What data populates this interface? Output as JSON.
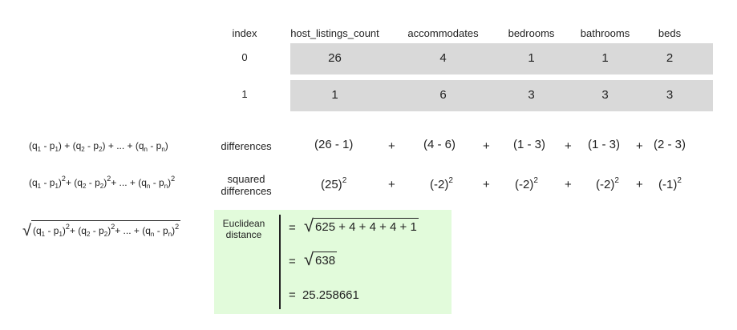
{
  "table": {
    "headers": [
      "index",
      "host_listings_count",
      "accommodates",
      "bedrooms",
      "bathrooms",
      "beds"
    ],
    "rows": [
      [
        "0",
        "26",
        "4",
        "1",
        "1",
        "2"
      ],
      [
        "1",
        "1",
        "6",
        "3",
        "3",
        "3"
      ]
    ],
    "row_color": "#d9d9d9"
  },
  "formulas": {
    "diff_left": "(q",
    "plus": "+",
    "ellipsis": "...",
    "n": "n",
    "sq": "2"
  },
  "differences": {
    "label": "differences",
    "terms": [
      "(26 - 1)",
      "(4 - 6)",
      "(1 - 3)",
      "(1 - 3)",
      "(2 - 3)"
    ],
    "op": "+"
  },
  "squared": {
    "label_line1": "squared",
    "label_line2": "differences",
    "bases": [
      "(25)",
      "(-2)",
      "(-2)",
      "(-2)",
      "(-1)"
    ],
    "exp": "2",
    "op": "+"
  },
  "euclidean": {
    "label_line1": "Euclidean",
    "label_line2": "distance",
    "eq": "=",
    "radicand1": "625 + 4 + 4 + 4 + 1",
    "radicand2": "638",
    "result": "25.258661",
    "bg_color": "#e2fbdb"
  }
}
